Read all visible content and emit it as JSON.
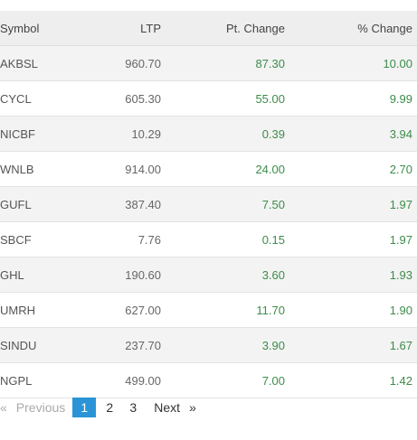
{
  "table": {
    "headers": {
      "symbol": "Symbol",
      "ltp": "LTP",
      "pt_change": "Pt. Change",
      "pct_change": "% Change"
    },
    "rows": [
      {
        "symbol": "AKBSL",
        "ltp": "960.70",
        "pt_change": "87.30",
        "pct_change": "10.00"
      },
      {
        "symbol": "CYCL",
        "ltp": "605.30",
        "pt_change": "55.00",
        "pct_change": "9.99"
      },
      {
        "symbol": "NICBF",
        "ltp": "10.29",
        "pt_change": "0.39",
        "pct_change": "3.94"
      },
      {
        "symbol": "WNLB",
        "ltp": "914.00",
        "pt_change": "24.00",
        "pct_change": "2.70"
      },
      {
        "symbol": "GUFL",
        "ltp": "387.40",
        "pt_change": "7.50",
        "pct_change": "1.97"
      },
      {
        "symbol": "SBCF",
        "ltp": "7.76",
        "pt_change": "0.15",
        "pct_change": "1.97"
      },
      {
        "symbol": "GHL",
        "ltp": "190.60",
        "pt_change": "3.60",
        "pct_change": "1.93"
      },
      {
        "symbol": "UMRH",
        "ltp": "627.00",
        "pt_change": "11.70",
        "pct_change": "1.90"
      },
      {
        "symbol": "SINDU",
        "ltp": "237.70",
        "pt_change": "3.90",
        "pct_change": "1.67"
      },
      {
        "symbol": "NGPL",
        "ltp": "499.00",
        "pt_change": "7.00",
        "pct_change": "1.42"
      }
    ]
  },
  "pagination": {
    "prev_icon": "«",
    "prev_label": "Previous",
    "pages": [
      "1",
      "2",
      "3"
    ],
    "active_page": "1",
    "next_label": "Next",
    "next_icon": "»"
  },
  "colors": {
    "positive": "#3c8c4a",
    "active_page_bg": "#2a94d6",
    "header_bg": "#eeeeee"
  }
}
